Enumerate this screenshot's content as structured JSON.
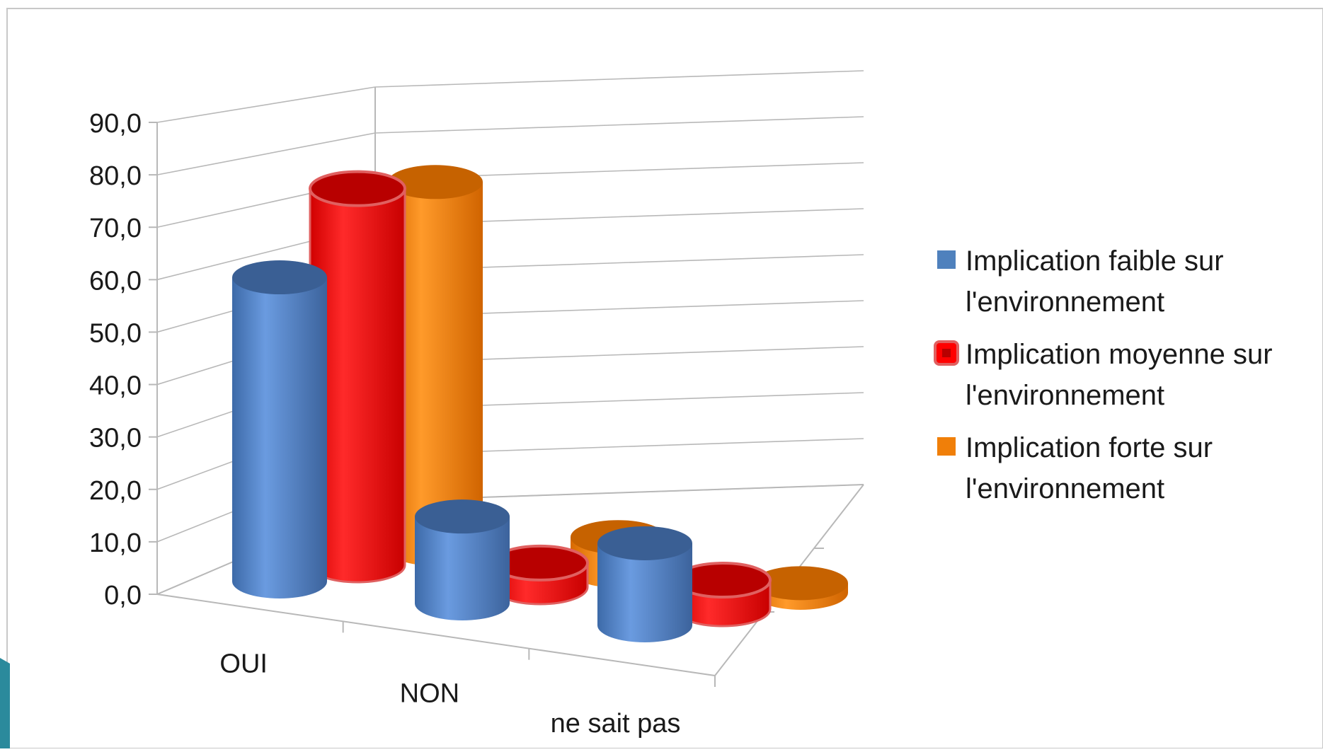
{
  "chart_data": {
    "type": "bar",
    "style": "3d-cylinder",
    "categories": [
      "OUI",
      "NON",
      "ne sait pas"
    ],
    "series": [
      {
        "name": "Implication faible sur l'environnement",
        "color": "#4f81bd",
        "values": [
          63.0,
          18.0,
          17.0
        ]
      },
      {
        "name": "Implication moyenne sur l'environnement",
        "color": "#ff0000",
        "values": [
          78.0,
          5.0,
          6.0
        ]
      },
      {
        "name": "Implication forte sur l'environnement",
        "color": "#f07f09",
        "values": [
          76.0,
          7.0,
          2.0
        ]
      }
    ],
    "y_ticks": [
      "0,0",
      "10,0",
      "20,0",
      "30,0",
      "40,0",
      "50,0",
      "60,0",
      "70,0",
      "80,0",
      "90,0"
    ],
    "ylim": [
      0,
      90
    ],
    "grid": true,
    "legend_position": "right"
  },
  "legend": {
    "lines": [
      [
        "Implication faible sur",
        "l'environnement"
      ],
      [
        "Implication moyenne sur",
        "l'environnement"
      ],
      [
        "Implication forte sur",
        "l'environnement"
      ]
    ]
  }
}
